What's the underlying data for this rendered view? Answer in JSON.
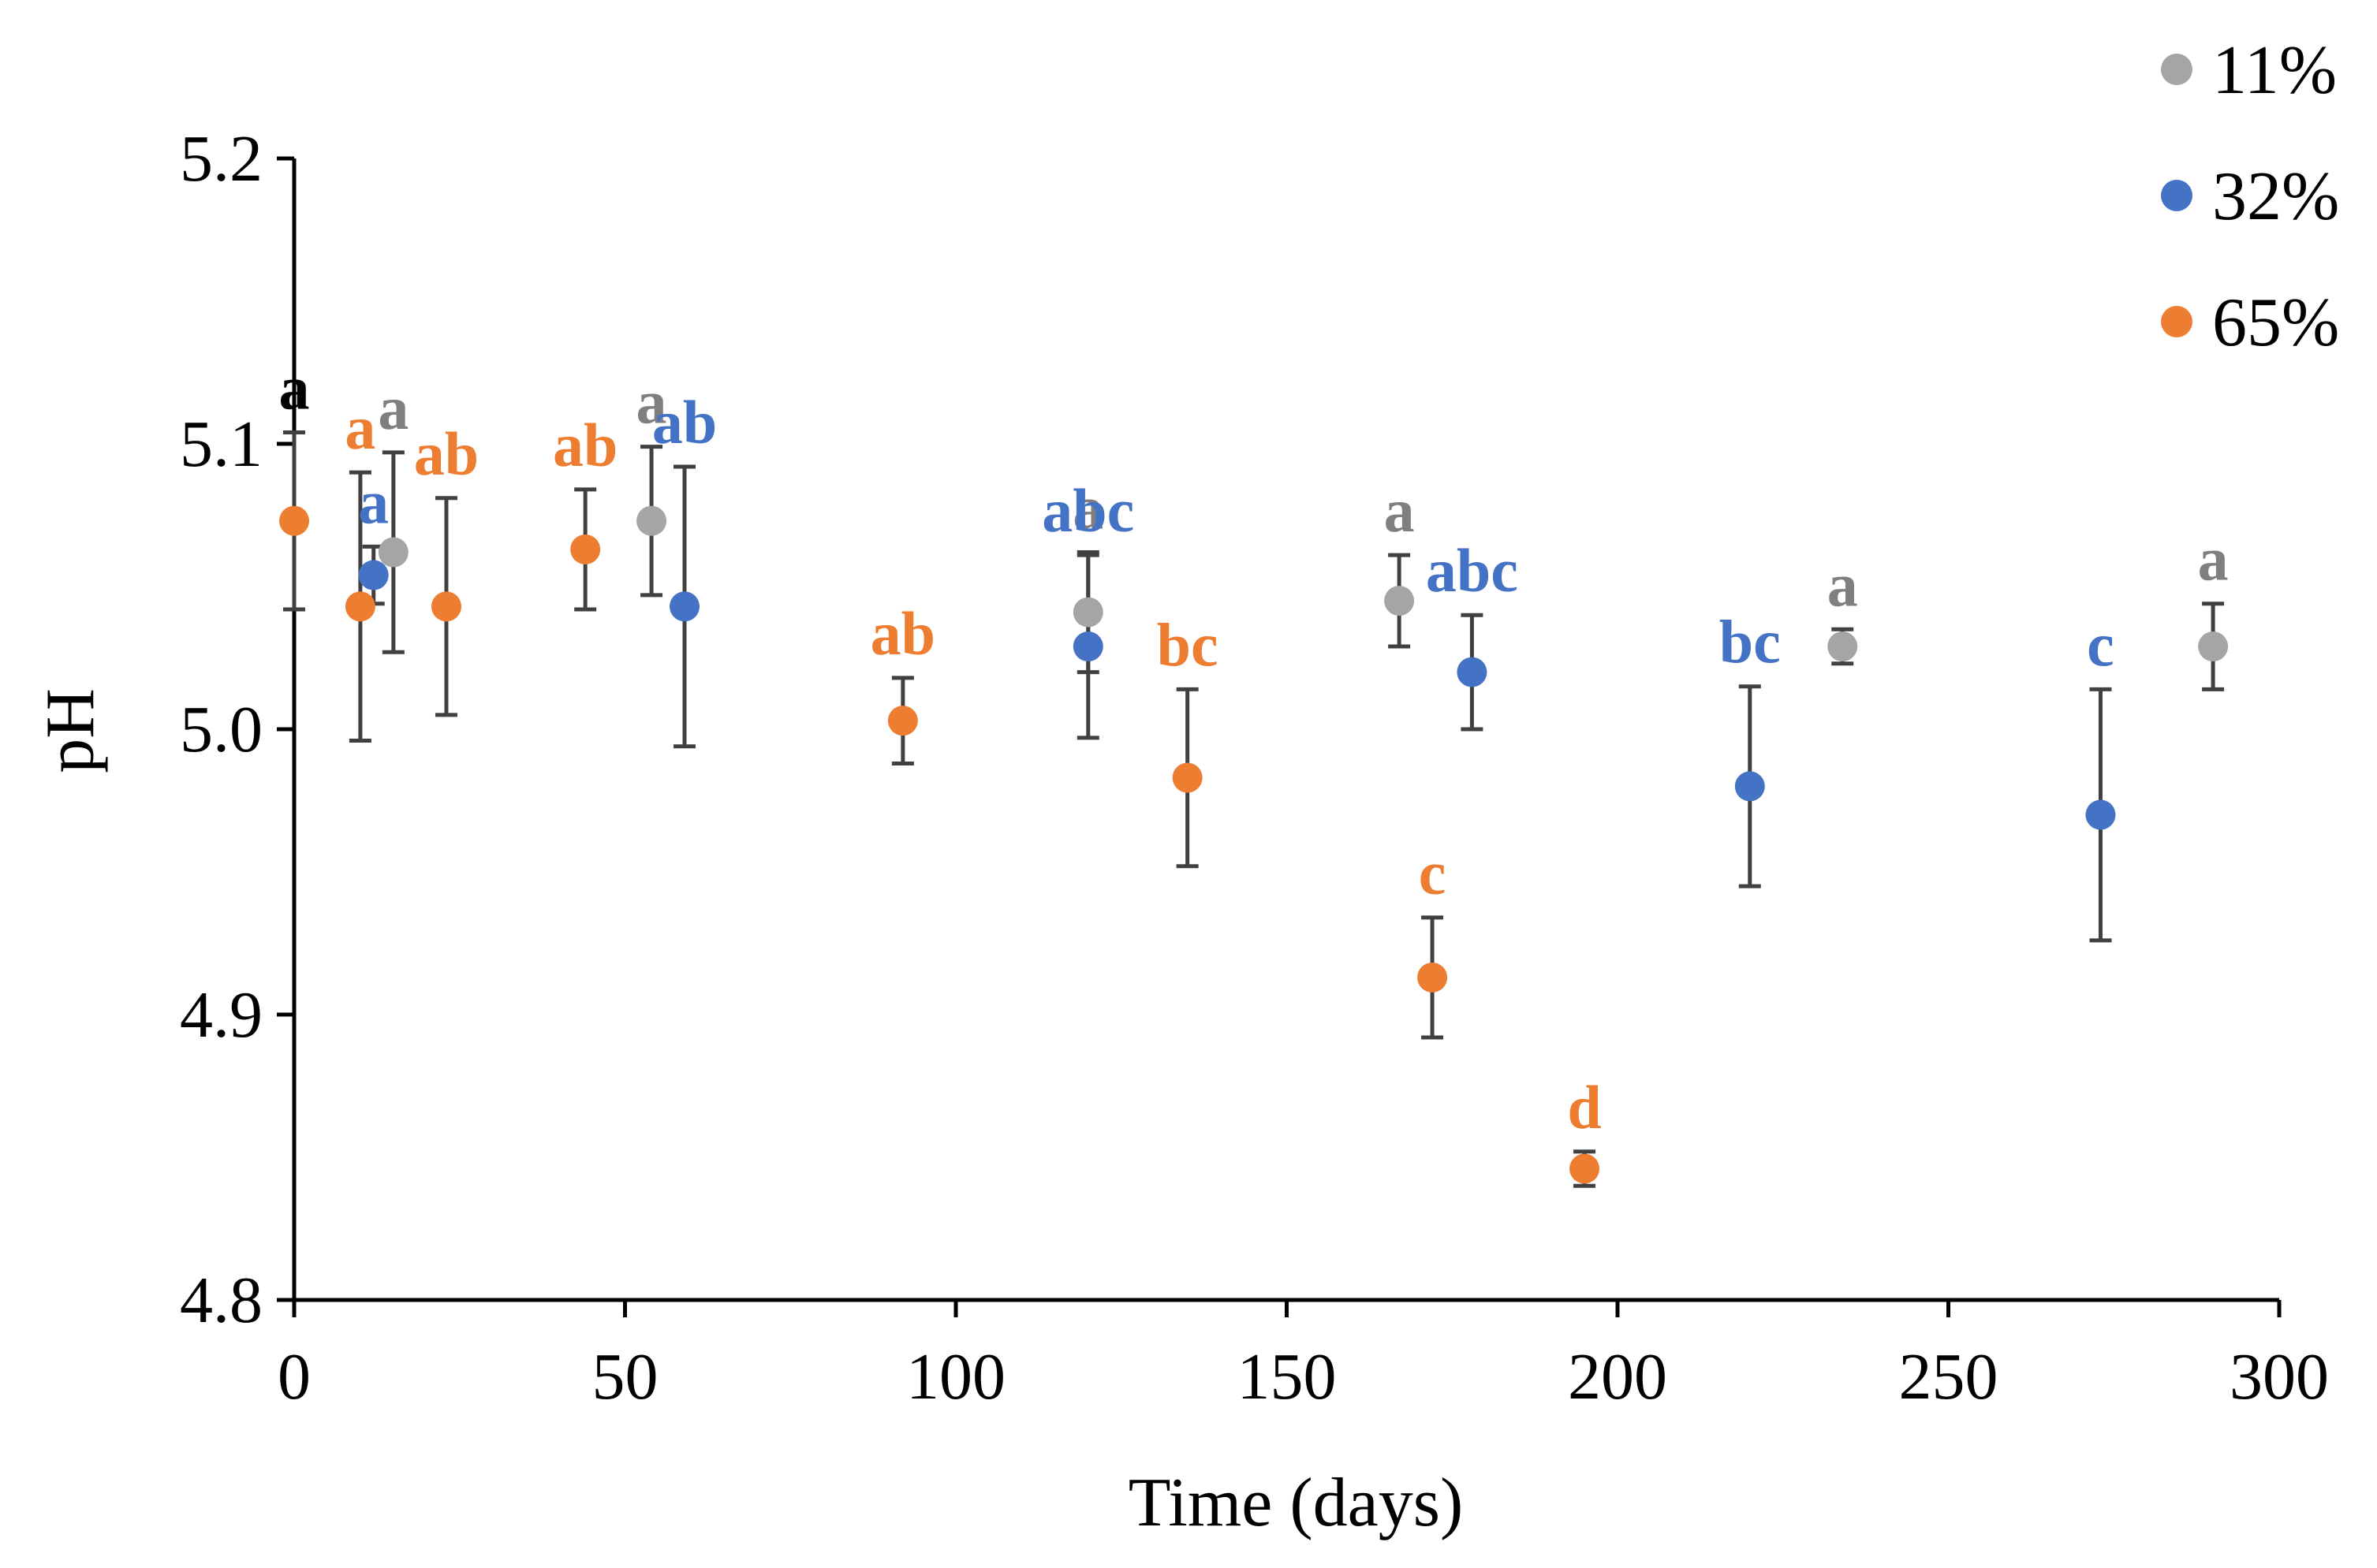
{
  "chart_data": {
    "type": "scatter",
    "title": "",
    "xlabel": "Time (days)",
    "ylabel": "pH",
    "xlim": [
      0,
      300
    ],
    "ylim": [
      4.8,
      5.2
    ],
    "xticks": [
      0,
      50,
      100,
      150,
      200,
      250,
      300
    ],
    "yticks": [
      4.8,
      4.9,
      5.0,
      5.1,
      5.2
    ],
    "xtick_labels": [
      "0",
      "50",
      "100",
      "150",
      "200",
      "250",
      "300"
    ],
    "ytick_labels": [
      "4.8",
      "4.9",
      "5.0",
      "5.1",
      "5.2"
    ],
    "grid": false,
    "legend_position": "top-right",
    "initial_point": {
      "x": 0,
      "y": 5.073,
      "err": 0.031,
      "label": "a",
      "label_color": "#000000"
    },
    "series": [
      {
        "name": "11%",
        "color": "#a5a5a5",
        "label_color": "#7f7f7f",
        "points": [
          {
            "x": 15,
            "y": 5.062,
            "err": 0.035,
            "label": "a"
          },
          {
            "x": 54,
            "y": 5.073,
            "err": 0.026,
            "label": "a"
          },
          {
            "x": 120,
            "y": 5.041,
            "err": 0.021,
            "label": "a"
          },
          {
            "x": 167,
            "y": 5.045,
            "err": 0.016,
            "label": "a"
          },
          {
            "x": 234,
            "y": 5.029,
            "err": 0.006,
            "label": "a"
          },
          {
            "x": 290,
            "y": 5.029,
            "err": 0.015,
            "label": "a"
          }
        ]
      },
      {
        "name": "32%",
        "color": "#4472c4",
        "label_color": "#4472c4",
        "points": [
          {
            "x": 12,
            "y": 5.054,
            "err": 0.01,
            "label": "a"
          },
          {
            "x": 59,
            "y": 5.043,
            "err": 0.049,
            "label": "ab"
          },
          {
            "x": 120,
            "y": 5.029,
            "err": 0.032,
            "label": "abc"
          },
          {
            "x": 178,
            "y": 5.02,
            "err": 0.02,
            "label": "abc"
          },
          {
            "x": 220,
            "y": 4.98,
            "err": 0.035,
            "label": "bc"
          },
          {
            "x": 273,
            "y": 4.97,
            "err": 0.044,
            "label": "c"
          }
        ]
      },
      {
        "name": "65%",
        "color": "#ed7d31",
        "label_color": "#ed7d31",
        "points": [
          {
            "x": 10,
            "y": 5.043,
            "err": 0.047,
            "label": "a"
          },
          {
            "x": 23,
            "y": 5.043,
            "err": 0.038,
            "label": "ab"
          },
          {
            "x": 44,
            "y": 5.063,
            "err": 0.021,
            "label": "ab"
          },
          {
            "x": 92,
            "y": 5.003,
            "err": 0.015,
            "label": "ab"
          },
          {
            "x": 135,
            "y": 4.983,
            "err": 0.031,
            "label": "bc"
          },
          {
            "x": 172,
            "y": 4.913,
            "err": 0.021,
            "label": "c"
          },
          {
            "x": 195,
            "y": 4.846,
            "err": 0.006,
            "label": "d"
          }
        ]
      }
    ]
  }
}
